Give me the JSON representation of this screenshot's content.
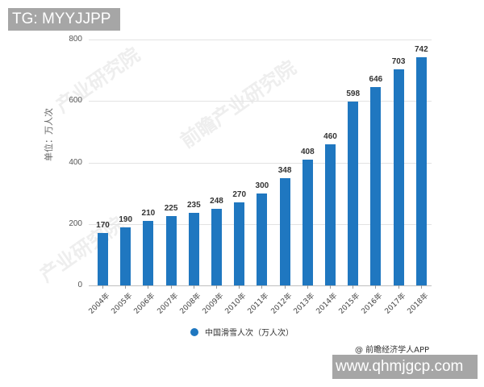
{
  "watermarks": {
    "top": "TG: MYYJJPP",
    "bottom": "www.qhmjgcp.com"
  },
  "source": "@ 前瞻经济学人APP",
  "colors": {
    "bar": "#1f77c0",
    "grid": "#e3e3e3"
  },
  "chart_data": {
    "type": "bar",
    "title": "",
    "xlabel": "",
    "ylabel": "单位：万人次",
    "ylim": [
      0,
      800
    ],
    "yticks": [
      0,
      200,
      400,
      600,
      800
    ],
    "grid": true,
    "legend_position": "bottom",
    "categories": [
      "2004年",
      "2005年",
      "2006年",
      "2007年",
      "2008年",
      "2009年",
      "2010年",
      "2011年",
      "2012年",
      "2013年",
      "2014年",
      "2015年",
      "2016年",
      "2017年",
      "2018年"
    ],
    "series": [
      {
        "name": "中国滑雪人次（万人次）",
        "values": [
          170,
          190,
          210,
          225,
          235,
          248,
          270,
          300,
          348,
          408,
          460,
          598,
          646,
          703,
          742
        ]
      }
    ]
  }
}
